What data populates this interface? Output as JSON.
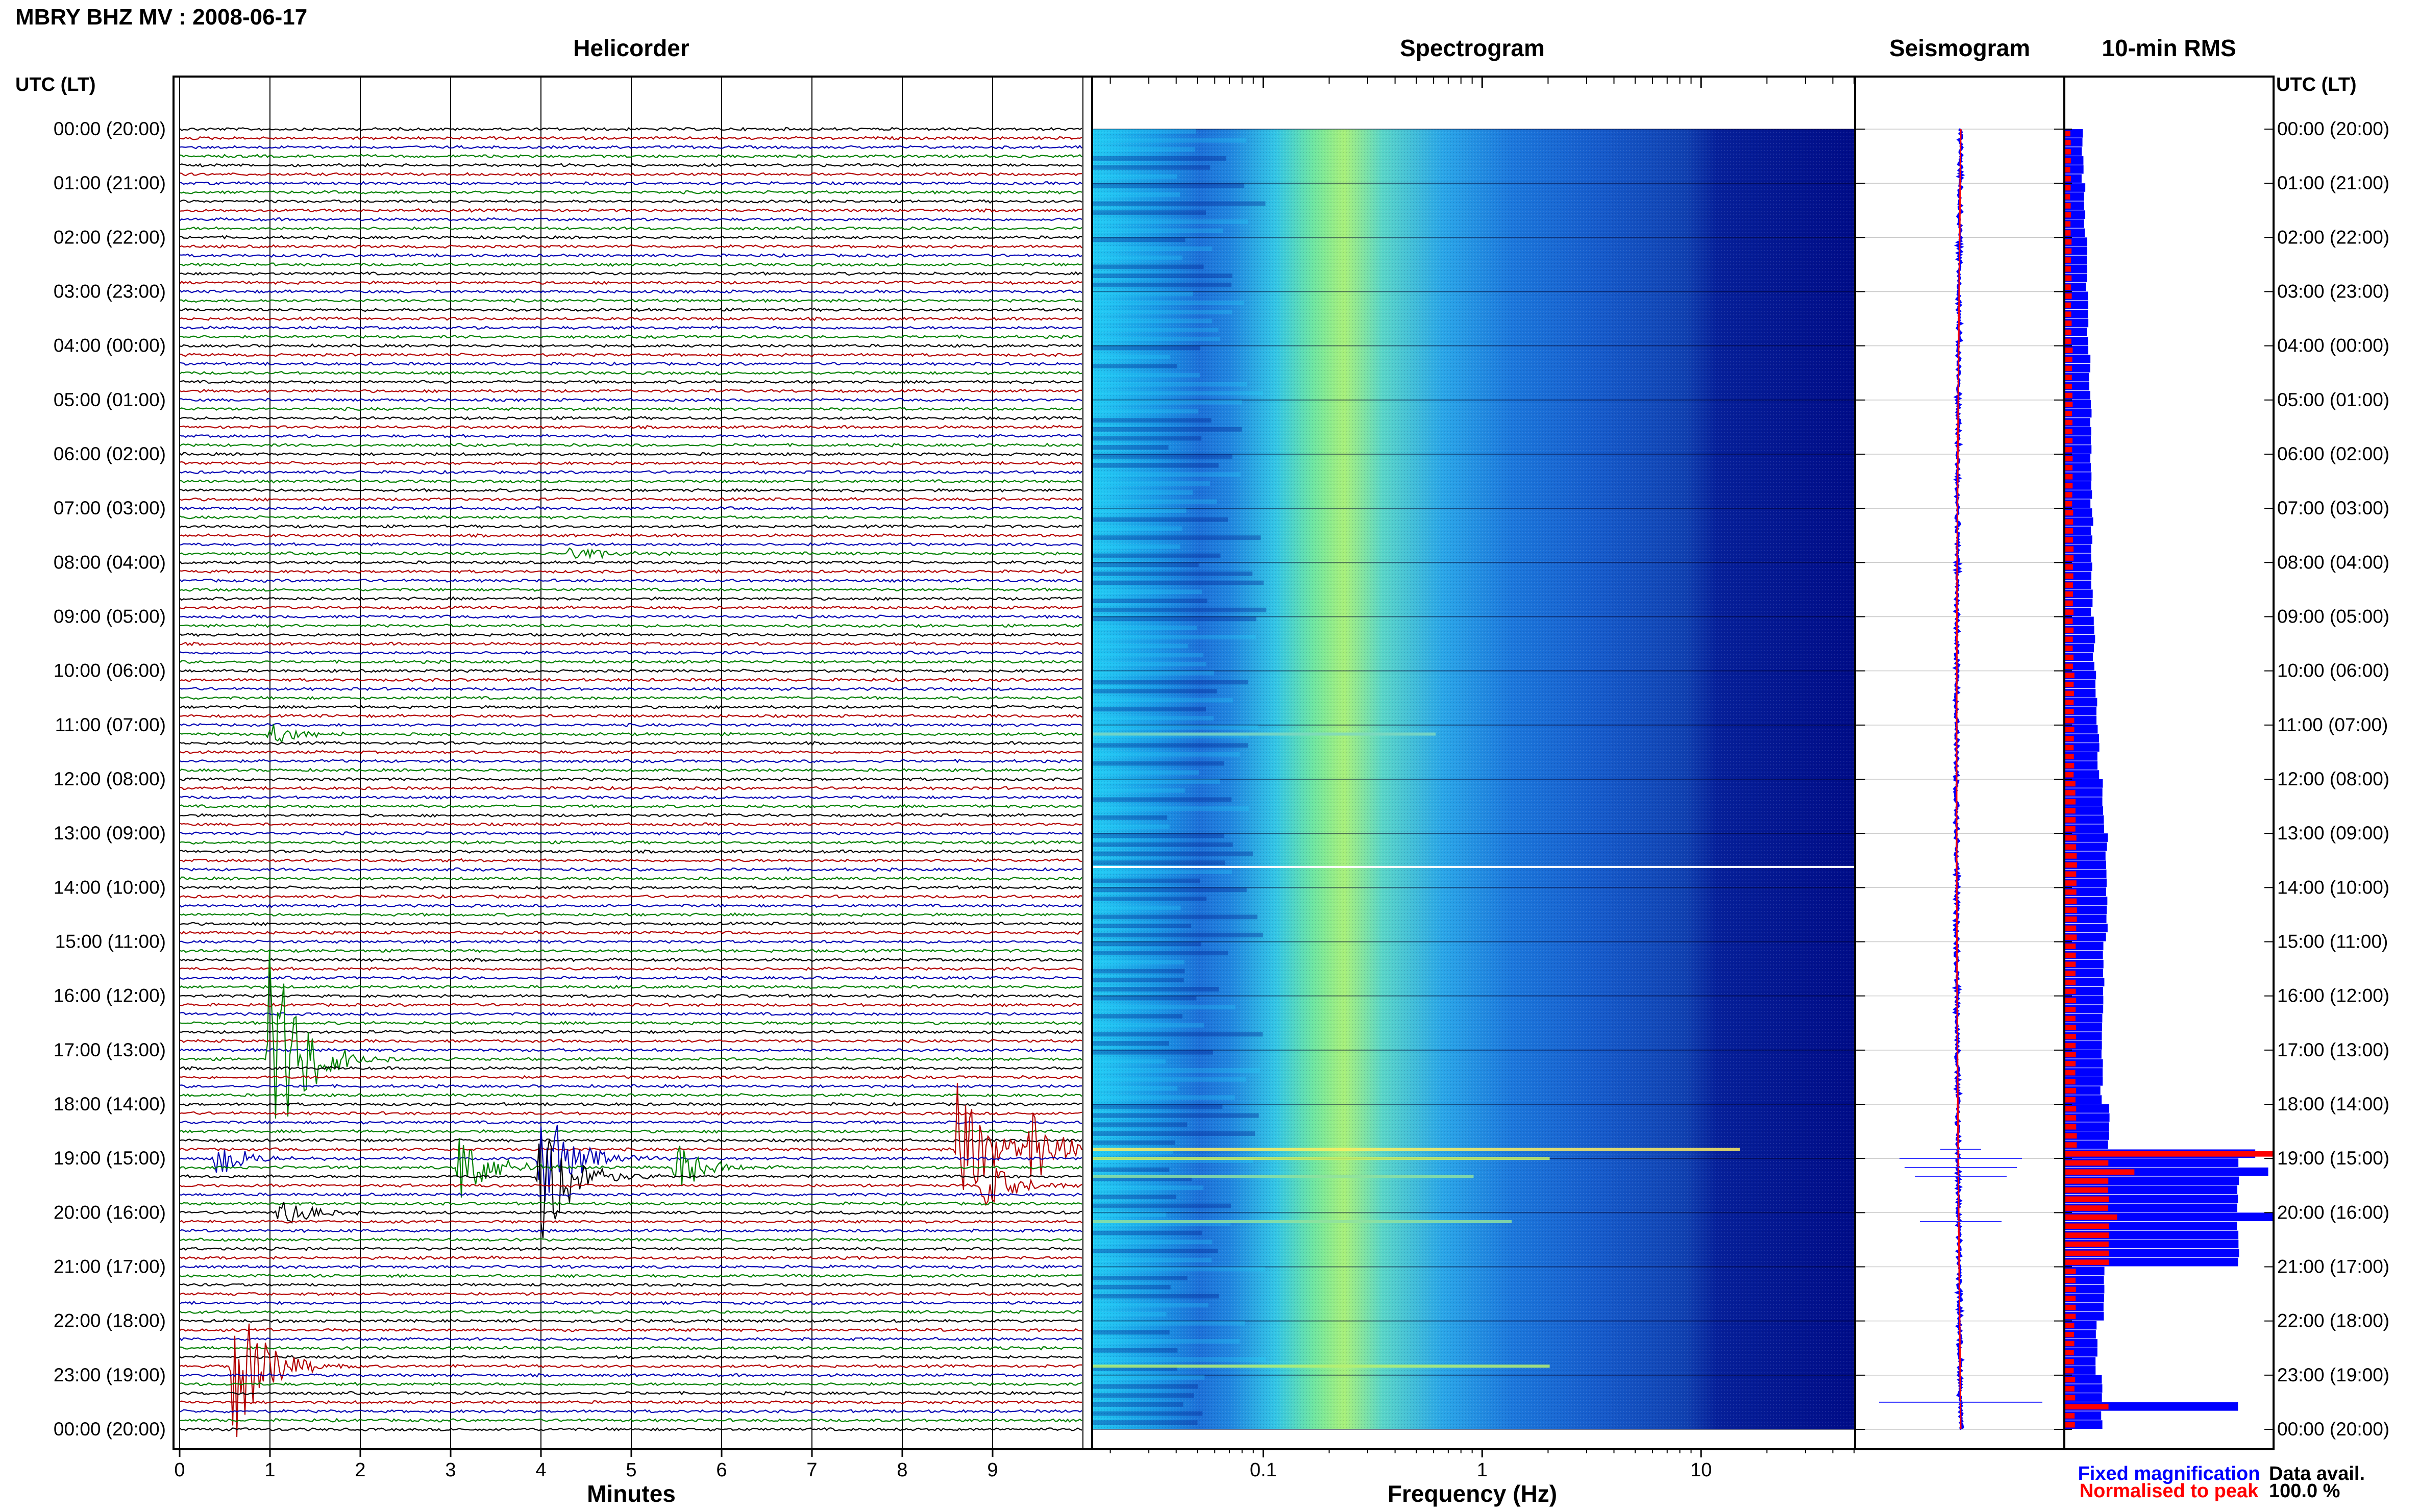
{
  "header": {
    "station_title": "MBRY BHZ MV : 2008-06-17",
    "utc_label_left": "UTC (LT)",
    "utc_label_right": "UTC (LT)"
  },
  "panels": {
    "helicorder": "Helicorder",
    "spectrogram": "Spectrogram",
    "seismogram": "Seismogram",
    "rms": "10-min RMS"
  },
  "time_labels": [
    "00:00 (20:00)",
    "01:00 (21:00)",
    "02:00 (22:00)",
    "03:00 (23:00)",
    "04:00 (00:00)",
    "05:00 (01:00)",
    "06:00 (02:00)",
    "07:00 (03:00)",
    "08:00 (04:00)",
    "09:00 (05:00)",
    "10:00 (06:00)",
    "11:00 (07:00)",
    "12:00 (08:00)",
    "13:00 (09:00)",
    "14:00 (10:00)",
    "15:00 (11:00)",
    "16:00 (12:00)",
    "17:00 (13:00)",
    "18:00 (14:00)",
    "19:00 (15:00)",
    "20:00 (16:00)",
    "21:00 (17:00)",
    "22:00 (18:00)",
    "23:00 (19:00)",
    "00:00 (20:00)"
  ],
  "helicorder_axis": {
    "xlabel": "Minutes",
    "ticks": [
      "0",
      "1",
      "2",
      "3",
      "4",
      "5",
      "6",
      "7",
      "8",
      "9"
    ],
    "trace_colors": [
      "#000000",
      "#b30000",
      "#0000b3",
      "#008000"
    ]
  },
  "spectrogram_axis": {
    "xlabel": "Frequency (Hz)",
    "ticks": [
      "0.1",
      "1",
      "10"
    ],
    "tick_values": [
      0.1,
      1,
      10
    ],
    "xlim": [
      0.0167,
      50
    ],
    "scale": "log"
  },
  "legend": {
    "fixed": "Fixed magnification",
    "fixed_color": "#0000ff",
    "normalised": "Normalised to peak",
    "normalised_color": "#ff0000"
  },
  "data_avail": {
    "label": "Data avail.",
    "value": "100.0 %"
  },
  "chart_data": [
    {
      "type": "line",
      "title": "Helicorder",
      "xlabel": "Minutes",
      "xlim": [
        0,
        10
      ],
      "rows_per_hour": 6,
      "events": [
        {
          "hour": 17,
          "row": 1,
          "minute": 1.0,
          "amp": 1.0
        },
        {
          "hour": 18,
          "row": 5,
          "minute": 8.6,
          "amp": 0.55
        },
        {
          "hour": 18,
          "row": 5,
          "minute": 9.4,
          "amp": 0.3
        },
        {
          "hour": 19,
          "row": 0,
          "minute": 4.0,
          "amp": 0.5
        },
        {
          "hour": 19,
          "row": 0,
          "minute": 0.4,
          "amp": 0.15
        },
        {
          "hour": 19,
          "row": 1,
          "minute": 3.1,
          "amp": 0.3
        },
        {
          "hour": 19,
          "row": 1,
          "minute": 5.5,
          "amp": 0.2
        },
        {
          "hour": 19,
          "row": 2,
          "minute": 4.0,
          "amp": 0.6
        },
        {
          "hour": 19,
          "row": 3,
          "minute": 8.9,
          "amp": 0.2
        },
        {
          "hour": 20,
          "row": 0,
          "minute": 1.1,
          "amp": 0.12
        },
        {
          "hour": 22,
          "row": 5,
          "minute": 0.6,
          "amp": 0.6
        },
        {
          "hour": 11,
          "row": 1,
          "minute": 1.0,
          "amp": 0.1
        },
        {
          "hour": 7,
          "row": 5,
          "minute": 4.3,
          "amp": 0.08
        }
      ]
    },
    {
      "type": "heatmap",
      "title": "Spectrogram",
      "xlabel": "Frequency (Hz)",
      "x_scale": "log",
      "xlim": [
        0.0167,
        50
      ]
    },
    {
      "type": "line",
      "title": "Seismogram",
      "series": [
        {
          "name": "Fixed magnification",
          "color": "#0000ff"
        },
        {
          "name": "Normalised to peak",
          "color": "#ff0000"
        }
      ]
    },
    {
      "type": "bar",
      "title": "10-min RMS",
      "series": [
        {
          "name": "Fixed magnification",
          "color": "#0000ff",
          "hourly_values": [
            0.2,
            0.22,
            0.24,
            0.26,
            0.28,
            0.3,
            0.3,
            0.31,
            0.31,
            0.33,
            0.36,
            0.38,
            0.44,
            0.48,
            0.48,
            0.44,
            0.43,
            0.42,
            0.5,
            2.0,
            2.0,
            0.45,
            0.36,
            0.42,
            0.3
          ],
          "peaks": [
            {
              "hour": 18,
              "row": 5,
              "value": 2.2
            },
            {
              "hour": 19,
              "row": 1,
              "value": 2.35
            },
            {
              "hour": 20,
              "row": 0,
              "value": 2.4
            },
            {
              "hour": 23,
              "row": 3,
              "value": 2.0
            }
          ]
        },
        {
          "name": "Normalised to peak",
          "color": "#ff0000",
          "hourly_values": [
            0.06,
            0.06,
            0.07,
            0.07,
            0.08,
            0.08,
            0.08,
            0.09,
            0.09,
            0.09,
            0.1,
            0.1,
            0.12,
            0.13,
            0.13,
            0.12,
            0.12,
            0.12,
            0.13,
            0.5,
            0.5,
            0.12,
            0.1,
            0.11,
            0.08
          ],
          "peaks": [
            {
              "hour": 18,
              "row": 5,
              "value": 2.4
            },
            {
              "hour": 19,
              "row": 1,
              "value": 0.8
            },
            {
              "hour": 20,
              "row": 0,
              "value": 0.6
            },
            {
              "hour": 23,
              "row": 3,
              "value": 0.5
            }
          ]
        }
      ]
    }
  ]
}
